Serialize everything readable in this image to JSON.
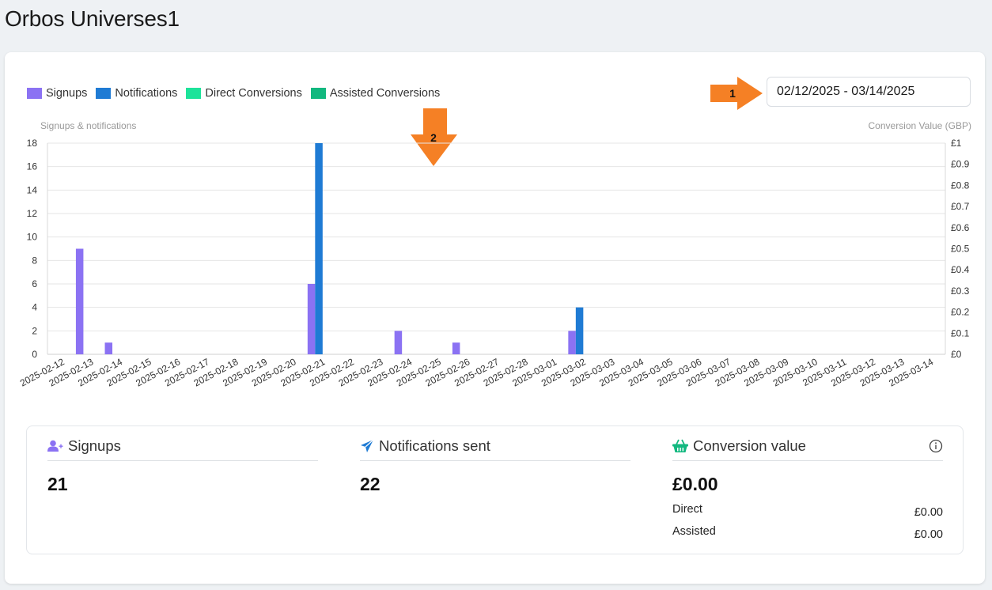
{
  "header": {
    "title": "Orbos Universes1"
  },
  "legend": [
    {
      "label": "Signups",
      "color": "#8b72f3"
    },
    {
      "label": "Notifications",
      "color": "#1f7bd4"
    },
    {
      "label": "Direct Conversions",
      "color": "#1de39a"
    },
    {
      "label": "Assisted Conversions",
      "color": "#12b87f"
    }
  ],
  "date_range": {
    "value": "02/12/2025 - 03/14/2025"
  },
  "annotations": {
    "first": "1",
    "second": "2"
  },
  "chart_data": {
    "type": "bar",
    "ylabel_left": "Signups & notifications",
    "ylabel_right": "Conversion Value (GBP)",
    "ylim_left": [
      0,
      18
    ],
    "ylim_right": [
      0,
      1
    ],
    "yticks_left": [
      "0",
      "2",
      "4",
      "6",
      "8",
      "10",
      "12",
      "14",
      "16",
      "18"
    ],
    "yticks_right": [
      "£0",
      "£0.1",
      "£0.2",
      "£0.3",
      "£0.4",
      "£0.5",
      "£0.6",
      "£0.7",
      "£0.8",
      "£0.9",
      "£1"
    ],
    "categories": [
      "2025-02-12",
      "2025-02-13",
      "2025-02-14",
      "2025-02-15",
      "2025-02-16",
      "2025-02-17",
      "2025-02-18",
      "2025-02-19",
      "2025-02-20",
      "2025-02-21",
      "2025-02-22",
      "2025-02-23",
      "2025-02-24",
      "2025-02-25",
      "2025-02-26",
      "2025-02-27",
      "2025-02-28",
      "2025-03-01",
      "2025-03-02",
      "2025-03-03",
      "2025-03-04",
      "2025-03-05",
      "2025-03-06",
      "2025-03-07",
      "2025-03-08",
      "2025-03-09",
      "2025-03-10",
      "2025-03-11",
      "2025-03-12",
      "2025-03-13",
      "2025-03-14"
    ],
    "series": [
      {
        "name": "Signups",
        "color": "#8b72f3",
        "values": [
          0,
          9,
          1,
          0,
          0,
          0,
          0,
          0,
          0,
          6,
          0,
          0,
          2,
          0,
          1,
          0,
          0,
          0,
          2,
          0,
          0,
          0,
          0,
          0,
          0,
          0,
          0,
          0,
          0,
          0,
          0
        ]
      },
      {
        "name": "Notifications",
        "color": "#1f7bd4",
        "values": [
          0,
          0,
          0,
          0,
          0,
          0,
          0,
          0,
          0,
          18,
          0,
          0,
          0,
          0,
          0,
          0,
          0,
          0,
          4,
          0,
          0,
          0,
          0,
          0,
          0,
          0,
          0,
          0,
          0,
          0,
          0
        ]
      },
      {
        "name": "Direct Conversions",
        "color": "#1de39a",
        "values": [
          0,
          0,
          0,
          0,
          0,
          0,
          0,
          0,
          0,
          0,
          0,
          0,
          0,
          0,
          0,
          0,
          0,
          0,
          0,
          0,
          0,
          0,
          0,
          0,
          0,
          0,
          0,
          0,
          0,
          0,
          0
        ]
      },
      {
        "name": "Assisted Conversions",
        "color": "#12b87f",
        "values": [
          0,
          0,
          0,
          0,
          0,
          0,
          0,
          0,
          0,
          0,
          0,
          0,
          0,
          0,
          0,
          0,
          0,
          0,
          0,
          0,
          0,
          0,
          0,
          0,
          0,
          0,
          0,
          0,
          0,
          0,
          0
        ]
      }
    ],
    "grid": true
  },
  "stats": {
    "signups": {
      "label": "Signups",
      "value": "21"
    },
    "notifications": {
      "label": "Notifications sent",
      "value": "22"
    },
    "conversion": {
      "label": "Conversion value",
      "value": "£0.00",
      "direct_label": "Direct",
      "direct_value": "£0.00",
      "assisted_label": "Assisted",
      "assisted_value": "£0.00"
    }
  }
}
